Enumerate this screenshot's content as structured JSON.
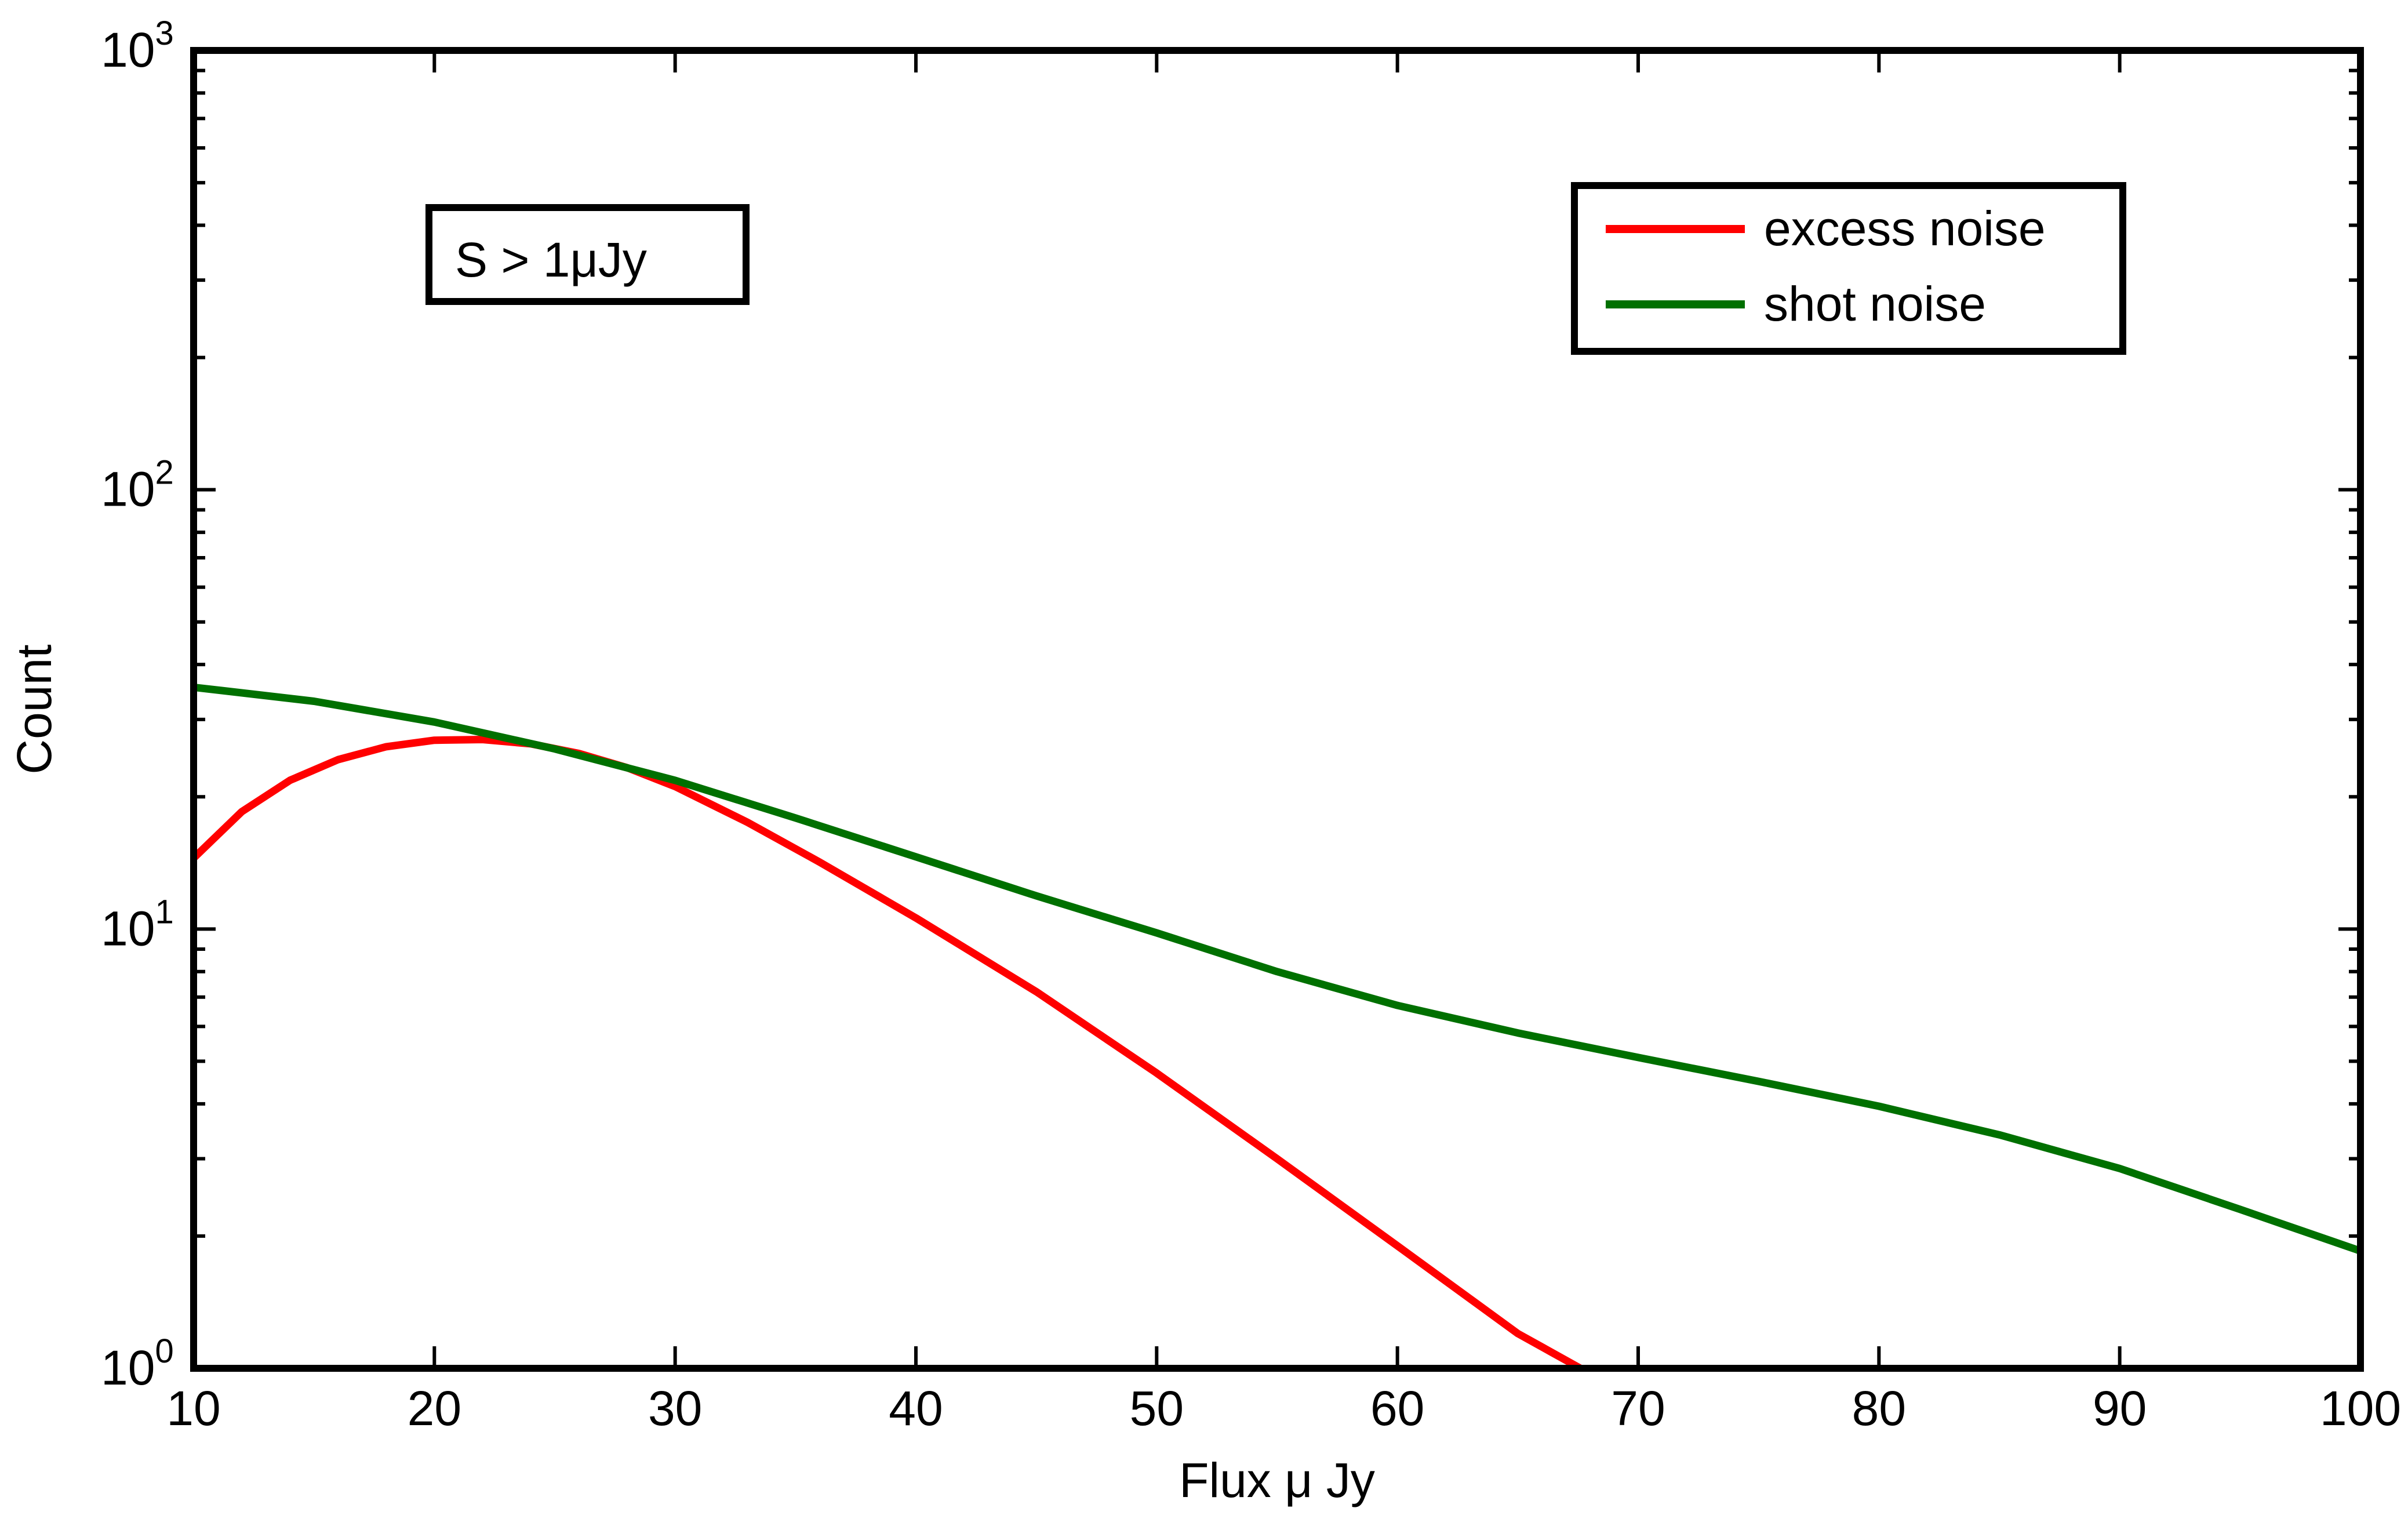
{
  "chart_data": {
    "type": "line",
    "xlabel": "Flux μ Jy",
    "ylabel": "Count",
    "xlim": [
      10,
      100
    ],
    "ylim": [
      1,
      1000
    ],
    "yscale": "log",
    "grid": false,
    "legend_position": "top-right",
    "x_ticks": [
      "10",
      "20",
      "30",
      "40",
      "50",
      "60",
      "70",
      "80",
      "90",
      "100"
    ],
    "y_ticks": [
      {
        "base": "10",
        "exp": "0"
      },
      {
        "base": "10",
        "exp": "1"
      },
      {
        "base": "10",
        "exp": "2"
      },
      {
        "base": "10",
        "exp": "3"
      }
    ],
    "annotation": "S > 1μJy",
    "series": [
      {
        "name": "excess noise",
        "color": "#ff0000",
        "x": [
          10,
          12,
          14,
          16,
          18,
          20,
          22,
          24,
          26,
          28,
          30,
          33,
          36,
          40,
          45,
          50,
          55,
          60,
          65,
          67.6
        ],
        "y": [
          14.5,
          18.5,
          21.8,
          24.3,
          26.0,
          26.9,
          27.0,
          26.4,
          25.1,
          23.3,
          21.1,
          17.5,
          14.2,
          10.6,
          7.2,
          4.7,
          3.0,
          1.9,
          1.2,
          1.0
        ]
      },
      {
        "name": "shot noise",
        "color": "#007000",
        "x": [
          10,
          15,
          20,
          25,
          30,
          35,
          40,
          45,
          50,
          55,
          60,
          65,
          70,
          75,
          80,
          85,
          90,
          95,
          100
        ],
        "y": [
          35.5,
          33.0,
          29.6,
          25.7,
          21.8,
          17.9,
          14.6,
          11.9,
          9.8,
          8.0,
          6.7,
          5.8,
          5.1,
          4.5,
          3.95,
          3.4,
          2.85,
          2.3,
          1.85
        ]
      }
    ]
  }
}
